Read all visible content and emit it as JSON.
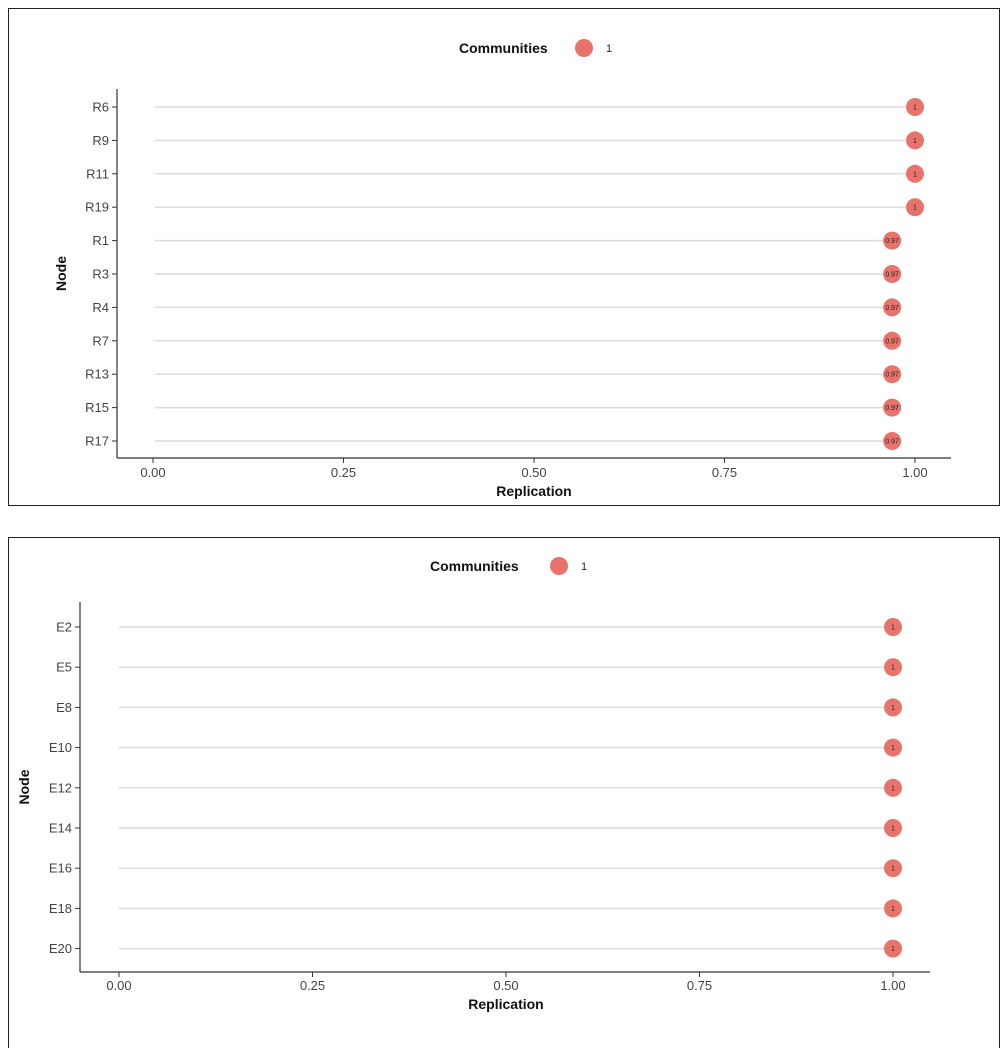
{
  "colors": {
    "point": "#e8736a",
    "point_label": "#222222",
    "line": "#dcdcdc",
    "axis": "#333333"
  },
  "chart_data": [
    {
      "type": "scatter",
      "subtype": "lollipop",
      "xlabel": "Replication",
      "ylabel": "Node",
      "xlim": [
        0,
        1
      ],
      "xticks": [
        "0.00",
        "0.25",
        "0.50",
        "0.75",
        "1.00"
      ],
      "xtick_values": [
        0,
        0.25,
        0.5,
        0.75,
        1
      ],
      "legend": {
        "title": "Communities",
        "items": [
          "1"
        ],
        "position": "top"
      },
      "grid": "horizontal",
      "categories": [
        "R6",
        "R9",
        "R11",
        "R19",
        "R1",
        "R3",
        "R4",
        "R7",
        "R13",
        "R15",
        "R17"
      ],
      "values": [
        1,
        1,
        1,
        1,
        0.97,
        0.97,
        0.97,
        0.97,
        0.97,
        0.97,
        0.97
      ],
      "point_labels": [
        "1",
        "1",
        "1",
        "1",
        "0.97",
        "0.97",
        "0.97",
        "0.97",
        "0.97",
        "0.97",
        "0.97"
      ]
    },
    {
      "type": "scatter",
      "subtype": "lollipop",
      "xlabel": "Replication",
      "ylabel": "Node",
      "xlim": [
        0,
        1
      ],
      "xticks": [
        "0.00",
        "0.25",
        "0.50",
        "0.75",
        "1.00"
      ],
      "xtick_values": [
        0,
        0.25,
        0.5,
        0.75,
        1
      ],
      "legend": {
        "title": "Communities",
        "items": [
          "1"
        ],
        "position": "top"
      },
      "grid": "horizontal",
      "categories": [
        "E2",
        "E5",
        "E8",
        "E10",
        "E12",
        "E14",
        "E16",
        "E18",
        "E20"
      ],
      "values": [
        1,
        1,
        1,
        1,
        1,
        1,
        1,
        1,
        1
      ],
      "point_labels": [
        "1",
        "1",
        "1",
        "1",
        "1",
        "1",
        "1",
        "1",
        "1"
      ]
    }
  ]
}
